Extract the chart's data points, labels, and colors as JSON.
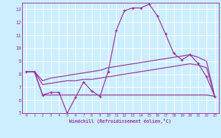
{
  "xlabel": "Windchill (Refroidissement éolien,°C)",
  "bg_color": "#cceeff",
  "grid_color": "#ffffff",
  "line_color": "#993399",
  "x_hours": [
    0,
    1,
    2,
    3,
    4,
    5,
    6,
    7,
    8,
    9,
    10,
    11,
    12,
    13,
    14,
    15,
    16,
    17,
    18,
    19,
    20,
    21,
    22,
    23
  ],
  "windchill": [
    8.2,
    8.2,
    6.4,
    6.6,
    6.6,
    5.0,
    6.2,
    7.4,
    6.7,
    6.3,
    8.2,
    11.4,
    12.9,
    13.1,
    13.1,
    13.4,
    12.5,
    11.1,
    9.6,
    9.1,
    9.5,
    8.8,
    7.8,
    6.3
  ],
  "line_bottom": [
    8.2,
    8.2,
    6.4,
    6.4,
    6.4,
    6.4,
    6.4,
    6.4,
    6.4,
    6.4,
    6.4,
    6.4,
    6.4,
    6.4,
    6.4,
    6.4,
    6.4,
    6.4,
    6.4,
    6.4,
    6.4,
    6.4,
    6.4,
    6.3
  ],
  "line_mid": [
    8.2,
    8.2,
    7.2,
    7.3,
    7.4,
    7.5,
    7.5,
    7.6,
    7.6,
    7.7,
    7.8,
    7.9,
    8.0,
    8.1,
    8.2,
    8.3,
    8.4,
    8.5,
    8.6,
    8.7,
    8.8,
    8.7,
    8.5,
    6.3
  ],
  "line_top": [
    8.2,
    8.2,
    7.5,
    7.7,
    7.8,
    7.9,
    8.0,
    8.1,
    8.2,
    8.3,
    8.5,
    8.6,
    8.7,
    8.8,
    8.9,
    9.0,
    9.1,
    9.2,
    9.3,
    9.4,
    9.5,
    9.3,
    9.0,
    6.3
  ],
  "ylim": [
    5,
    13.5
  ],
  "xlim": [
    -0.5,
    23.5
  ],
  "yticks": [
    5,
    6,
    7,
    8,
    9,
    10,
    11,
    12,
    13
  ],
  "xticks": [
    0,
    1,
    2,
    3,
    4,
    5,
    6,
    7,
    8,
    9,
    10,
    11,
    12,
    13,
    14,
    15,
    16,
    17,
    18,
    19,
    20,
    21,
    22,
    23
  ]
}
